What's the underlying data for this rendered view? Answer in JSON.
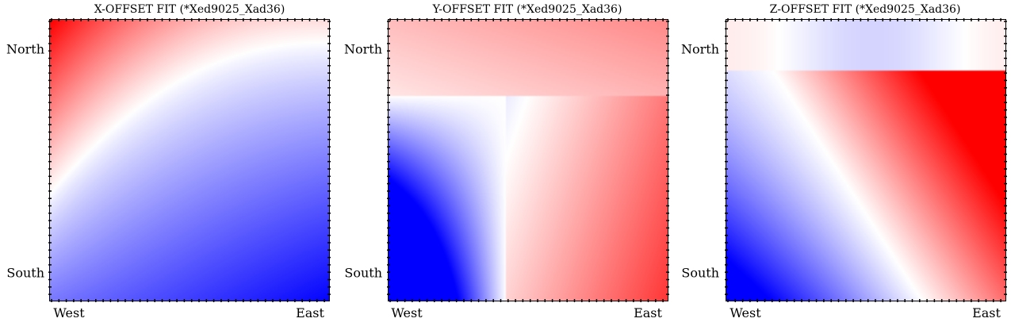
{
  "chart_data": [
    {
      "type": "heatmap",
      "title": "X-OFFSET FIT (*Xed9025_Xad36)",
      "x_tick_labels": [
        "West",
        "East"
      ],
      "y_tick_labels": [
        "North",
        "South"
      ],
      "colormap": [
        "#0000ff",
        "#ffffff",
        "#ff0000"
      ],
      "pattern": "red top-left, white band curving from left-middle to top-right, blue bottom-right"
    },
    {
      "type": "heatmap",
      "title": "Y-OFFSET FIT (*Xed9025_Xad36)",
      "x_tick_labels": [
        "West",
        "East"
      ],
      "y_tick_labels": [
        "North",
        "South"
      ],
      "colormap": [
        "#0000ff",
        "#ffffff",
        "#ff0000"
      ],
      "pattern": "blue bottom-left, white band along upper-left and lower-middle, red bottom-right"
    },
    {
      "type": "heatmap",
      "title": "Z-OFFSET FIT (*Xed9025_Xad36)",
      "x_tick_labels": [
        "West",
        "East"
      ],
      "y_tick_labels": [
        "North",
        "South"
      ],
      "colormap": [
        "#0000ff",
        "#ffffff",
        "#ff0000"
      ],
      "pattern": "blue bottom-left, red right edge, white diagonal band, faint tints at top"
    }
  ]
}
